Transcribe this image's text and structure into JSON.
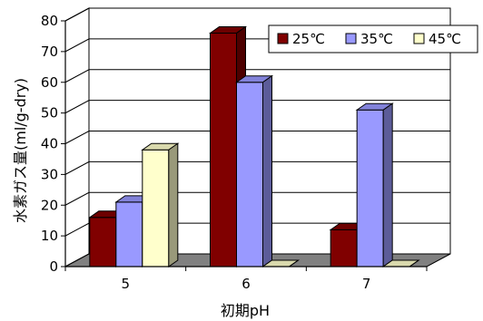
{
  "chart_data": {
    "type": "bar",
    "style": "3d-clustered-column",
    "title": "",
    "xlabel": "初期pH",
    "ylabel": "水素ガス量(ml/g-dry)",
    "categories": [
      "5",
      "6",
      "7"
    ],
    "series": [
      {
        "name": "25℃",
        "values": [
          16,
          76,
          12
        ],
        "color": "#800000"
      },
      {
        "name": "35℃",
        "values": [
          21,
          60,
          51
        ],
        "color": "#9999ff"
      },
      {
        "name": "45℃",
        "values": [
          38,
          0,
          0
        ],
        "color": "#ffffcc"
      }
    ],
    "ylim": [
      0,
      80
    ],
    "yticks": [
      0,
      10,
      20,
      30,
      40,
      50,
      60,
      70,
      80
    ],
    "grid": true,
    "legend_position": "top-right",
    "colors": {
      "floor": "#808080",
      "wall": "#ffffff",
      "gridline": "#000000"
    }
  }
}
